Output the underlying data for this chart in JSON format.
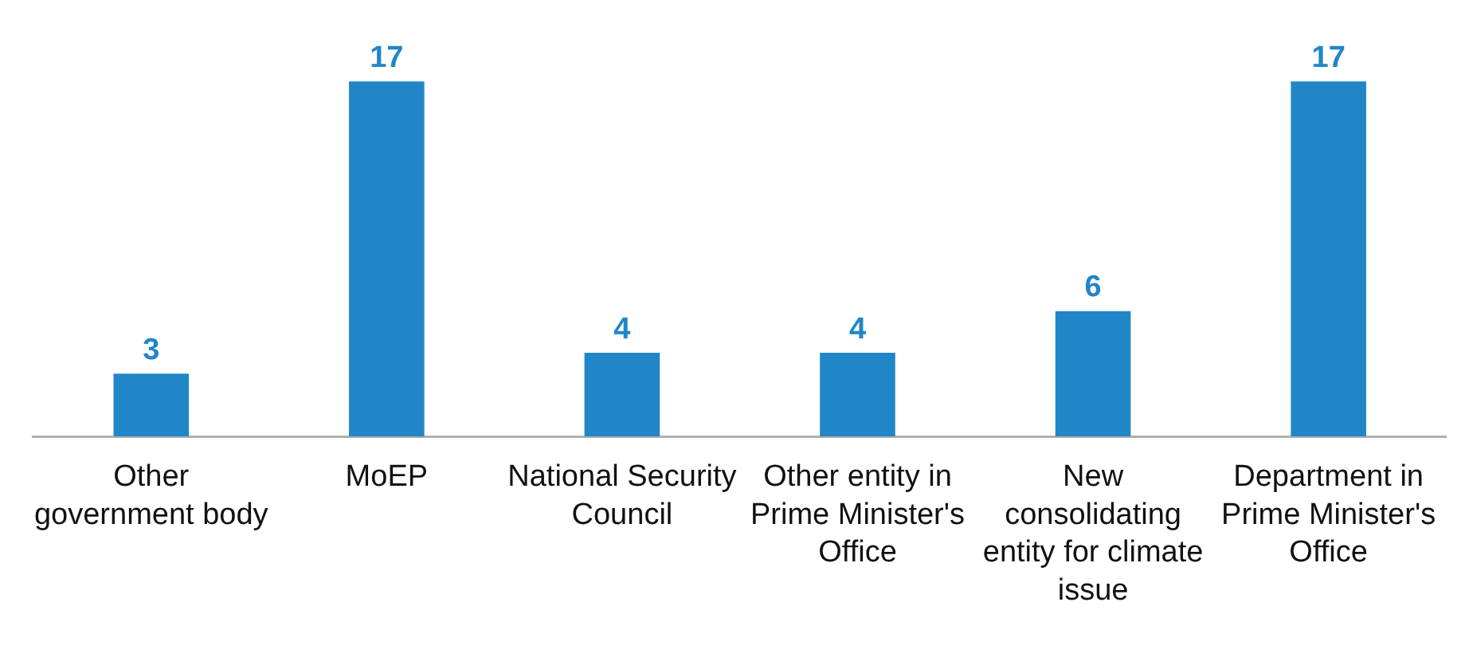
{
  "chart_data": {
    "type": "bar",
    "categories": [
      "Other government body",
      "MoEP",
      "National Security Council",
      "Other entity in Prime Minister's Office",
      "New consolidating entity for climate issue",
      "Department in Prime Minister's Office"
    ],
    "values": [
      3,
      17,
      4,
      4,
      6,
      17
    ],
    "color": "#2086c8",
    "data_labels": true,
    "tick_labels": "x",
    "grid": false,
    "legend": false
  }
}
